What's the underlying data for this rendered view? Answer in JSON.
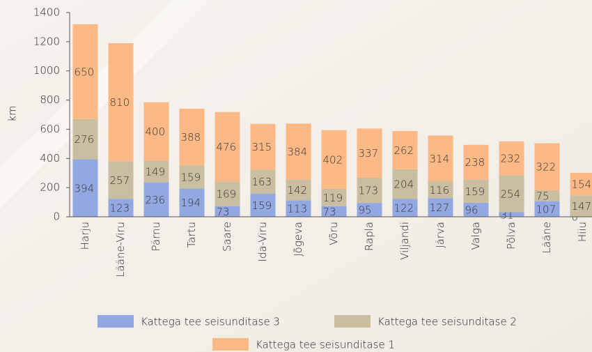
{
  "chart_data": {
    "type": "stacked_bar",
    "ylabel": "km",
    "categories": [
      "Harju",
      "Lääne-Viru",
      "Pärnu",
      "Tartu",
      "Saare",
      "Ida-Viru",
      "Jõgeva",
      "Võru",
      "Rapla",
      "Viljandi",
      "Järva",
      "Valga",
      "Põlva",
      "Lääne",
      "Hiiu"
    ],
    "series": [
      {
        "name": "Kattega tee seisunditase 3",
        "color": "#93a8e0",
        "values": [
          394,
          123,
          236,
          194,
          73,
          159,
          113,
          73,
          95,
          122,
          127,
          96,
          31,
          107,
          0
        ]
      },
      {
        "name": "Kattega tee seisunditase 2",
        "color": "#c9bea0",
        "values": [
          276,
          257,
          149,
          159,
          169,
          163,
          142,
          119,
          173,
          204,
          116,
          159,
          254,
          75,
          147
        ]
      },
      {
        "name": "Kattega tee seisunditase 1",
        "color": "#fcb985",
        "values": [
          650,
          810,
          400,
          388,
          476,
          315,
          384,
          402,
          337,
          262,
          314,
          238,
          232,
          322,
          154
        ]
      }
    ],
    "ylim": [
      0,
      1400
    ],
    "yticks": [
      0,
      200,
      400,
      600,
      800,
      1000,
      1200,
      1400
    ]
  }
}
